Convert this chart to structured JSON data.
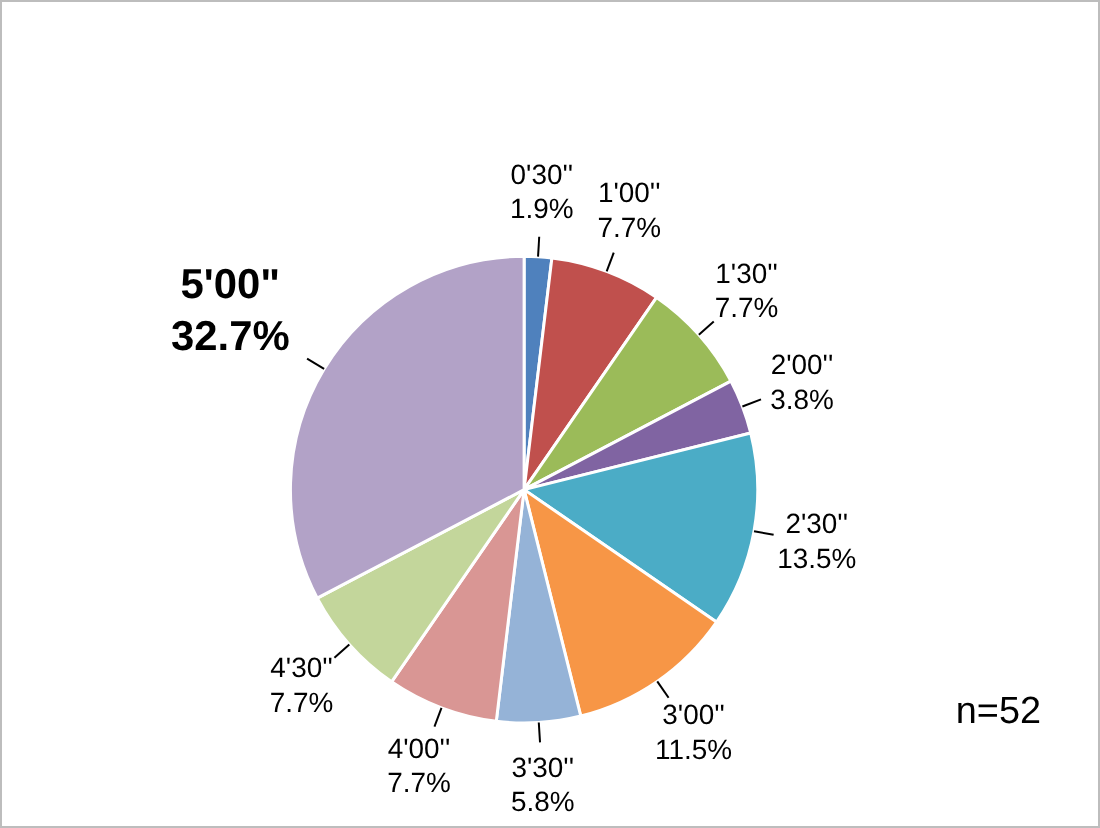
{
  "chart_data": {
    "type": "pie",
    "categories": [
      "0'30''",
      "1'00''",
      "1'30''",
      "2'00''",
      "2'30''",
      "3'00''",
      "3'30''",
      "4'00''",
      "4'30''",
      "5'00\""
    ],
    "values": [
      1.9,
      7.7,
      7.7,
      3.8,
      13.5,
      11.5,
      5.8,
      7.7,
      7.7,
      32.7
    ],
    "colors": [
      "#4f81bd",
      "#c0504d",
      "#9bbb59",
      "#8064a2",
      "#4bacc6",
      "#f79646",
      "#95b3d7",
      "#d99694",
      "#c3d69b",
      "#b2a2c7"
    ],
    "value_labels": [
      "1.9%",
      "7.7%",
      "7.7%",
      "3.8%",
      "13.5%",
      "11.5%",
      "5.8%",
      "7.7%",
      "7.7%",
      "32.7%"
    ],
    "legend": false,
    "annotations": [
      "n=52"
    ]
  }
}
